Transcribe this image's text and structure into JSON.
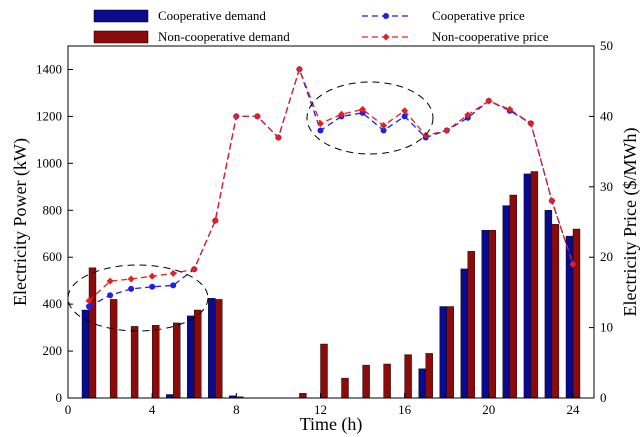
{
  "chart_data": {
    "type": "bar",
    "xlabel": "Time (h)",
    "ylabel_left": "Electricity Power (kW)",
    "ylabel_right": "Electricity Price ($/MWh)",
    "xlim": [
      0,
      25
    ],
    "ylim_left": [
      0,
      1500
    ],
    "ylim_right": [
      0,
      50
    ],
    "x_ticks": [
      0,
      4,
      8,
      12,
      16,
      20,
      24
    ],
    "y_left_ticks": [
      0,
      200,
      400,
      600,
      800,
      1000,
      1200,
      1400
    ],
    "y_right_ticks": [
      0,
      10,
      20,
      30,
      40,
      50
    ],
    "x": [
      1,
      2,
      3,
      4,
      5,
      6,
      7,
      8,
      9,
      10,
      11,
      12,
      13,
      14,
      15,
      16,
      17,
      18,
      19,
      20,
      21,
      22,
      23,
      24
    ],
    "legend_position": "top",
    "grid": false,
    "series": [
      {
        "name": "Cooperative demand",
        "kind": "bar",
        "axis": "left",
        "color": "#0a0a8c",
        "values": [
          375,
          0,
          0,
          0,
          15,
          350,
          425,
          10,
          0,
          0,
          0,
          0,
          0,
          0,
          0,
          0,
          125,
          390,
          550,
          715,
          820,
          955,
          800,
          690
        ]
      },
      {
        "name": "Non-cooperative demand",
        "kind": "bar",
        "axis": "left",
        "color": "#8b0a0a",
        "values": [
          555,
          420,
          305,
          310,
          320,
          375,
          420,
          5,
          0,
          0,
          20,
          230,
          85,
          140,
          145,
          185,
          190,
          390,
          625,
          715,
          865,
          965,
          740,
          720
        ]
      },
      {
        "name": "Cooperative price",
        "kind": "line",
        "axis": "right",
        "color": "#1f1fe6",
        "values": [
          13,
          14.6,
          15.5,
          15.8,
          16,
          18.3,
          25.2,
          40,
          40,
          37,
          46.7,
          38,
          40,
          40.5,
          38,
          40,
          37,
          38,
          39.8,
          42.2,
          40.8,
          39,
          28,
          19
        ]
      },
      {
        "name": "Non-cooperative price",
        "kind": "line",
        "axis": "right",
        "color": "#e61f1f",
        "values": [
          13.8,
          16.6,
          16.9,
          17.3,
          17.7,
          18.3,
          25.2,
          40,
          40,
          37,
          46.7,
          39,
          40.3,
          41,
          38.7,
          40.8,
          37.3,
          38,
          40.2,
          42.2,
          41,
          39,
          28,
          19
        ]
      }
    ]
  }
}
